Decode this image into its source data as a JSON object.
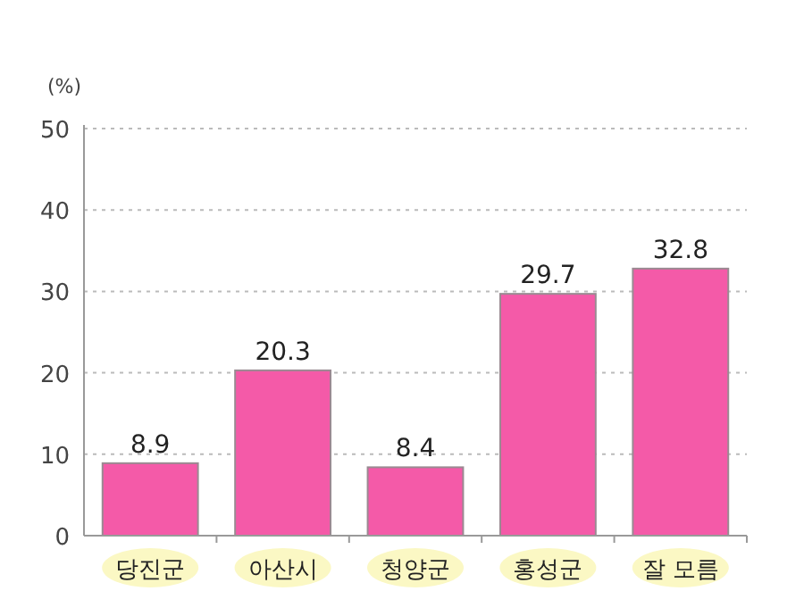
{
  "chart_data": {
    "type": "bar",
    "ylabel": "(%)",
    "categories": [
      "당진군",
      "아산시",
      "청양군",
      "홍성군",
      "잘 모름"
    ],
    "values": [
      8.9,
      20.3,
      8.4,
      29.7,
      32.8
    ],
    "color": "#f45aa8",
    "ylim": [
      0,
      50
    ],
    "yticks": [
      0,
      10,
      20,
      30,
      40,
      50
    ],
    "grid": "y",
    "data_labels": true
  }
}
